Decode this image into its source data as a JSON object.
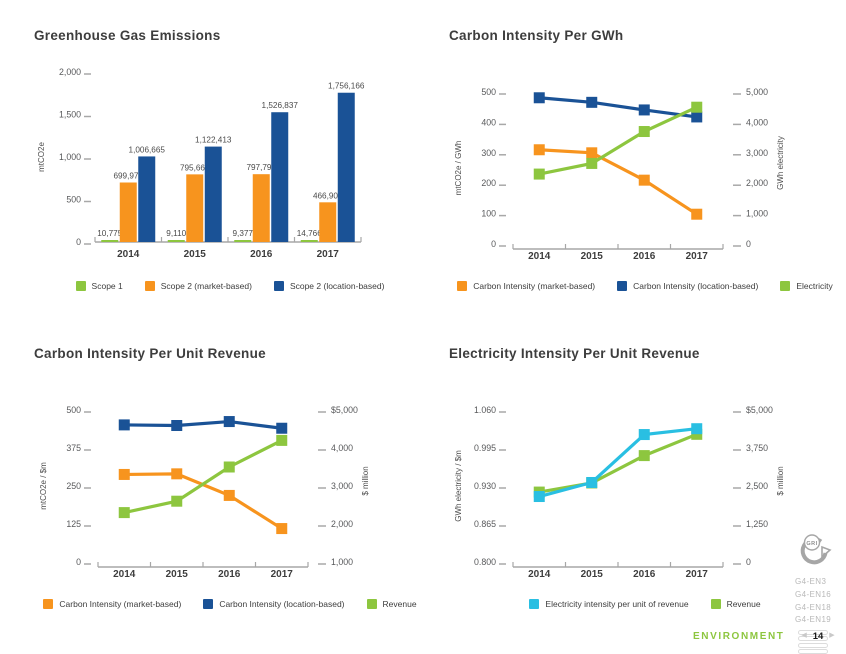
{
  "footer": {
    "section_label": "ENVIRONMENT",
    "page_number": "14",
    "prev_icon": "◀",
    "next_icon": "▶"
  },
  "gri": {
    "logo_text": "GRI",
    "codes": [
      "G4-EN3",
      "G4-EN16",
      "G4-EN18",
      "G4-EN19"
    ]
  },
  "colors": {
    "orange": "#f7941e",
    "green": "#8dc63f",
    "blue": "#1a5296",
    "cyan": "#29bfe2",
    "accent_green": "#8dc63f",
    "tick_text": "#58595b",
    "tick_dash": "#a8a8a8",
    "axis_line": "#a7a7a7",
    "year_text": "#3d3d3d"
  },
  "chart_data": [
    {
      "type": "bar",
      "title": "Greenhouse Gas Emissions",
      "ylabel": "mtCO2e",
      "categories": [
        "2014",
        "2015",
        "2016",
        "2017"
      ],
      "ylim": [
        0,
        2000
      ],
      "axis_divisor": 1000,
      "grid": false,
      "legend_position": "bottom",
      "yticks": [
        {
          "v": 0,
          "label": "0"
        },
        {
          "v": 500,
          "label": "500"
        },
        {
          "v": 1000,
          "label": "1,000"
        },
        {
          "v": 1500,
          "label": "1,500"
        },
        {
          "v": 2000,
          "label": "2,000"
        }
      ],
      "series": [
        {
          "name": "Scope 1",
          "color": "#8dc63f",
          "values": [
            10775,
            9110,
            9377,
            14766
          ],
          "value_labels": [
            "10,775",
            "9,110",
            "9,377",
            "14,766"
          ]
        },
        {
          "name": "Scope 2 (market-based)",
          "color": "#f7941e",
          "values": [
            699970,
            795669,
            797792,
            466902
          ],
          "value_labels": [
            "699,970",
            "795,669",
            "797,792",
            "466,902"
          ]
        },
        {
          "name": "Scope 2 (location-based)",
          "color": "#1a5296",
          "values": [
            1006665,
            1122413,
            1526837,
            1756166
          ],
          "value_labels": [
            "1,006,665",
            "1,122,413",
            "1,526,837",
            "1,756,166"
          ]
        }
      ]
    },
    {
      "type": "line",
      "title": "Carbon Intensity Per GWh",
      "ylabel_left": "mtCO2e / GWh",
      "ylabel_right": "GWh electricity",
      "categories": [
        "2014",
        "2015",
        "2016",
        "2017"
      ],
      "ylim_left": [
        0,
        500
      ],
      "ylim_right": [
        0,
        5000
      ],
      "grid": false,
      "legend_position": "bottom",
      "yticks_left": [
        {
          "v": 0,
          "label": "0"
        },
        {
          "v": 100,
          "label": "100"
        },
        {
          "v": 200,
          "label": "200"
        },
        {
          "v": 300,
          "label": "300"
        },
        {
          "v": 400,
          "label": "400"
        },
        {
          "v": 500,
          "label": "500"
        }
      ],
      "yticks_right": [
        {
          "v": 0,
          "label": "0"
        },
        {
          "v": 1000,
          "label": "1,000"
        },
        {
          "v": 2000,
          "label": "2,000"
        },
        {
          "v": 3000,
          "label": "3,000"
        },
        {
          "v": 4000,
          "label": "4,000"
        },
        {
          "v": 5000,
          "label": "5,000"
        }
      ],
      "series": [
        {
          "name": "Carbon Intensity (market-based)",
          "color": "#f7941e",
          "axis": "left",
          "values": [
            310,
            300,
            210,
            98
          ]
        },
        {
          "name": "Carbon Intensity (location-based)",
          "color": "#1a5296",
          "axis": "left",
          "values": [
            481,
            466,
            441,
            418
          ]
        },
        {
          "name": "Electricity",
          "color": "#8dc63f",
          "axis": "right",
          "values": [
            2300,
            2650,
            3700,
            4500
          ]
        }
      ]
    },
    {
      "type": "line",
      "title": "Carbon Intensity Per Unit Revenue",
      "ylabel_left": "mtCO2e / $m",
      "ylabel_right": "$ million",
      "categories": [
        "2014",
        "2015",
        "2016",
        "2017"
      ],
      "ylim_left": [
        0,
        500
      ],
      "ylim_right": [
        1000,
        5000
      ],
      "grid": false,
      "legend_position": "bottom",
      "yticks_left": [
        {
          "v": 0,
          "label": "0"
        },
        {
          "v": 125,
          "label": "125"
        },
        {
          "v": 250,
          "label": "250"
        },
        {
          "v": 375,
          "label": "375"
        },
        {
          "v": 500,
          "label": "500"
        }
      ],
      "yticks_right": [
        {
          "v": 1000,
          "label": "1,000"
        },
        {
          "v": 2000,
          "label": "2,000"
        },
        {
          "v": 3000,
          "label": "3,000"
        },
        {
          "v": 4000,
          "label": "4,000"
        },
        {
          "v": 5000,
          "label": "$5,000"
        }
      ],
      "series": [
        {
          "name": "Carbon Intensity (market-based)",
          "color": "#f7941e",
          "axis": "left",
          "values": [
            288,
            290,
            219,
            110
          ]
        },
        {
          "name": "Carbon Intensity (location-based)",
          "color": "#1a5296",
          "axis": "left",
          "values": [
            451,
            449,
            462,
            440
          ]
        },
        {
          "name": "Revenue",
          "color": "#8dc63f",
          "axis": "right",
          "values": [
            2300,
            2600,
            3500,
            4200
          ]
        }
      ]
    },
    {
      "type": "line",
      "title": "Electricity Intensity Per Unit Revenue",
      "ylabel_left": "GWh electricity / $m",
      "ylabel_right": "$ million",
      "categories": [
        "2014",
        "2015",
        "2016",
        "2017"
      ],
      "ylim_left": [
        0.8,
        1.06
      ],
      "ylim_right": [
        0,
        5000
      ],
      "grid": false,
      "legend_position": "bottom",
      "draw_order": [
        1,
        0
      ],
      "yticks_left": [
        {
          "v": 0.8,
          "label": "0.800"
        },
        {
          "v": 0.865,
          "label": "0.865"
        },
        {
          "v": 0.93,
          "label": "0.930"
        },
        {
          "v": 0.995,
          "label": "0.995"
        },
        {
          "v": 1.06,
          "label": "1.060"
        }
      ],
      "yticks_right": [
        {
          "v": 0,
          "label": "0"
        },
        {
          "v": 1250,
          "label": "1,250"
        },
        {
          "v": 2500,
          "label": "2,500"
        },
        {
          "v": 3750,
          "label": "3,750"
        },
        {
          "v": 5000,
          "label": "$5,000"
        }
      ],
      "series": [
        {
          "name": "Electricity intensity per unit of revenue",
          "color": "#29bfe2",
          "axis": "left",
          "values": [
            0.912,
            0.936,
            1.018,
            1.028
          ]
        },
        {
          "name": "Revenue",
          "color": "#8dc63f",
          "axis": "right",
          "values": [
            2300,
            2600,
            3500,
            4200
          ]
        }
      ]
    }
  ]
}
